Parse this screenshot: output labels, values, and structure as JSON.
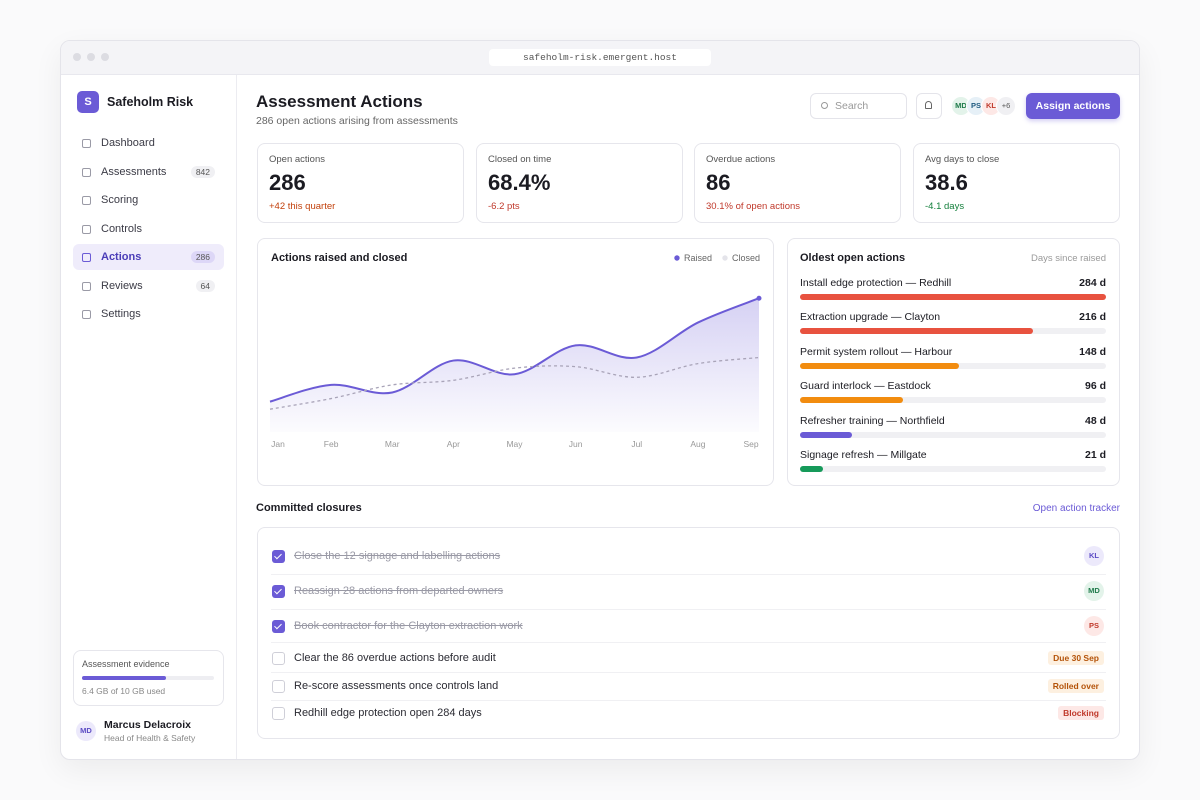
{
  "browser": {
    "url": "safeholm-risk.emergent.host"
  },
  "sidebar": {
    "brand_initial": "S",
    "brand": "Safeholm Risk",
    "nav": [
      {
        "label": "Dashboard"
      },
      {
        "label": "Assessments",
        "count": 842
      },
      {
        "label": "Scoring"
      },
      {
        "label": "Controls"
      },
      {
        "label": "Actions",
        "count": 286,
        "active": true
      },
      {
        "label": "Reviews",
        "count": 64
      },
      {
        "label": "Settings"
      }
    ],
    "storage": {
      "title": "Assessment evidence",
      "label": "6.4 GB of 10 GB used",
      "used": 6.4,
      "total": 10
    },
    "user": {
      "initials": "MD",
      "name": "Marcus Delacroix",
      "role": "Head of Health & Safety"
    }
  },
  "header": {
    "title": "Assessment Actions",
    "subtitle": "286 open actions arising from assessments",
    "search_placeholder": "Search",
    "avatars": [
      "MD",
      "PS",
      "KL"
    ],
    "avatar_more": "+6",
    "button": "Assign actions"
  },
  "kpis": [
    {
      "label": "Open actions",
      "value": "286",
      "delta": "+42 this quarter",
      "tone": "warn"
    },
    {
      "label": "Closed on time",
      "value": "68.4%",
      "delta": "-6.2 pts",
      "tone": "bad"
    },
    {
      "label": "Overdue actions",
      "value": "86",
      "delta": "30.1% of open actions",
      "tone": "bad"
    },
    {
      "label": "Avg days to close",
      "value": "38.6",
      "delta": "-4.1 days",
      "tone": "good"
    }
  ],
  "chart_data": {
    "type": "line",
    "title": "Actions raised and closed",
    "categories": [
      "Jan",
      "Feb",
      "Mar",
      "Apr",
      "May",
      "Jun",
      "Jul",
      "Aug",
      "Sep"
    ],
    "series": [
      {
        "name": "Raised",
        "color": "#6b5bd6",
        "values": [
          20,
          31,
          26,
          47,
          38,
          57,
          49,
          72,
          88
        ]
      },
      {
        "name": "Closed",
        "color": "#a9a4b8",
        "values": [
          15,
          22,
          31,
          34,
          42,
          43,
          36,
          45,
          49
        ]
      }
    ],
    "ylim": [
      0,
      100
    ]
  },
  "oldest": {
    "title": "Oldest open actions",
    "subtitle": "Days since raised",
    "items": [
      {
        "label": "Install edge protection — Redhill",
        "value": 284,
        "value_label": "284 d",
        "color": "#e8523f"
      },
      {
        "label": "Extraction upgrade — Clayton",
        "value": 216,
        "value_label": "216 d",
        "color": "#e8523f"
      },
      {
        "label": "Permit system rollout — Harbour",
        "value": 148,
        "value_label": "148 d",
        "color": "#f28c0f"
      },
      {
        "label": "Guard interlock — Eastdock",
        "value": 96,
        "value_label": "96 d",
        "color": "#f28c0f"
      },
      {
        "label": "Refresher training — Northfield",
        "value": 48,
        "value_label": "48 d",
        "color": "#6b5bd6"
      },
      {
        "label": "Signage refresh — Millgate",
        "value": 21,
        "value_label": "21 d",
        "color": "#169a5a"
      }
    ]
  },
  "closures": {
    "title": "Committed closures",
    "link": "Open action tracker",
    "items": [
      {
        "text": "Close the 12 signage and labelling actions",
        "done": true,
        "owner": "KL"
      },
      {
        "text": "Reassign 28 actions from departed owners",
        "done": true,
        "owner": "MD"
      },
      {
        "text": "Book contractor for the Clayton extraction work",
        "done": true,
        "owner": "PS"
      },
      {
        "text": "Clear the 86 overdue actions before audit",
        "done": false,
        "tag": "Due 30 Sep",
        "tone": "warn"
      },
      {
        "text": "Re-score assessments once controls land",
        "done": false,
        "tag": "Rolled over",
        "tone": "warn"
      },
      {
        "text": "Redhill edge protection open 284 days",
        "done": false,
        "tag": "Blocking",
        "tone": "bad"
      }
    ]
  }
}
